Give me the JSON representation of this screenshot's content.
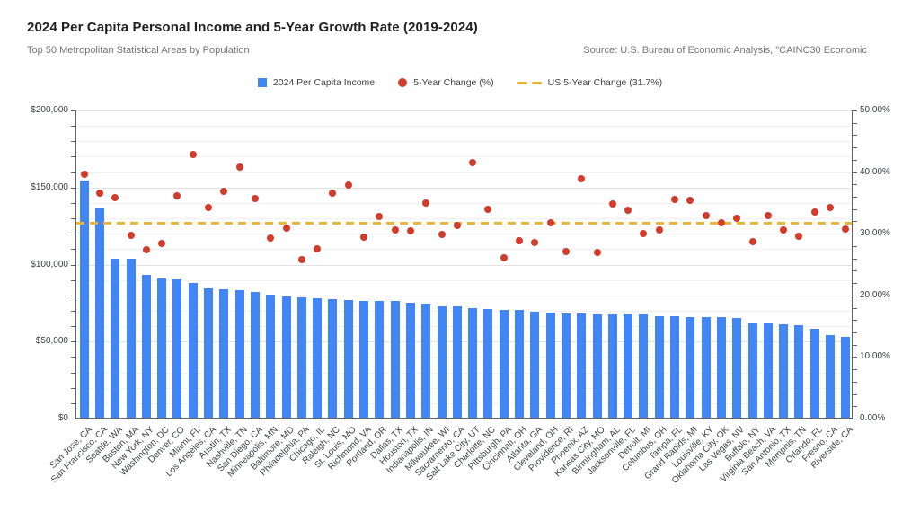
{
  "chart_data": {
    "type": "bar",
    "subtype": "combo-bar-scatter",
    "title": "2024 Per Capita Personal Income and 5-Year Growth Rate (2019-2024)",
    "subtitle": "Top 50 Metropolitan Statistical Areas by Population",
    "source_note": "Source: U.S. Bureau of Economic Analysis, \"CAINC30 Economic",
    "grid": true,
    "legend_position": "top-center",
    "categories": [
      "San Jose, CA",
      "San Francisco, CA",
      "Seattle, WA",
      "Boston, MA",
      "New York, NY",
      "Washington, DC",
      "Denver, CO",
      "Miami, FL",
      "Los Angeles, CA",
      "Austin, TX",
      "Nashville, TN",
      "San Diego, CA",
      "Minneapolis, MN",
      "Baltimore, MD",
      "Philadelphia, PA",
      "Chicago, IL",
      "Raleigh, NC",
      "St. Louis, MO",
      "Richmond, VA",
      "Portland, OR",
      "Dallas, TX",
      "Houston, TX",
      "Indianapolis, IN",
      "Milwaukee, WI",
      "Sacramento, CA",
      "Salt Lake City, UT",
      "Charlotte, NC",
      "Pittsburgh, PA",
      "Cincinnati, OH",
      "Atlanta, GA",
      "Cleveland, OH",
      "Providence, RI",
      "Phoenix, AZ",
      "Kansas City, MO",
      "Birmingham, AL",
      "Jacksonville, FL",
      "Detroit, MI",
      "Columbus, OH",
      "Tampa, FL",
      "Grand Rapids, MI",
      "Louisville, KY",
      "Oklahoma City, OK",
      "Las Vegas, NV",
      "Buffalo, NY",
      "Virginia Beach, VA",
      "San Antonio, TX",
      "Memphis, TN",
      "Orlando, FL",
      "Fresno, CA",
      "Riverside, CA"
    ],
    "series": [
      {
        "name": "2024 Per Capita Income",
        "type": "bar",
        "axis": "left",
        "color": "#4285F4",
        "values": [
          154000,
          136000,
          103500,
          103000,
          92600,
          90200,
          90000,
          87200,
          84200,
          83500,
          82900,
          81900,
          79900,
          78900,
          78400,
          77600,
          77000,
          76400,
          76100,
          76000,
          75900,
          74400,
          74100,
          72500,
          72300,
          71100,
          70700,
          70100,
          69700,
          68800,
          68200,
          67800,
          67600,
          67300,
          67200,
          67000,
          66800,
          65900,
          65800,
          65600,
          65300,
          65200,
          64700,
          61300,
          61000,
          60800,
          60300,
          57800,
          53900,
          52500
        ]
      },
      {
        "name": "5-Year Change (%)",
        "type": "scatter",
        "axis": "right",
        "color": "#D23C2B",
        "values": [
          39.6,
          36.6,
          35.9,
          29.8,
          27.4,
          28.4,
          36.2,
          42.8,
          34.2,
          36.9,
          40.8,
          35.7,
          29.3,
          30.9,
          25.8,
          27.6,
          36.6,
          37.9,
          29.4,
          32.8,
          30.6,
          30.4,
          35.0,
          29.9,
          31.3,
          41.5,
          33.9,
          26.1,
          28.9,
          28.5,
          31.8,
          27.1,
          38.9,
          27.0,
          34.9,
          33.8,
          30.0,
          30.6,
          35.6,
          35.4,
          32.9,
          31.8,
          32.5,
          28.7,
          32.9,
          30.6,
          29.6,
          33.6,
          34.2,
          30.8
        ]
      }
    ],
    "reference_line": {
      "name": "US 5-Year Change (31.7%)",
      "value": 31.7,
      "axis": "right",
      "style": "dashed",
      "color": "#E9B53C"
    },
    "axes": {
      "left": {
        "min": 0,
        "max": 200000,
        "minor_step": 10000,
        "tick_labels": [
          "$0",
          "$50,000",
          "$100,000",
          "$150,000",
          "$200,000"
        ]
      },
      "right": {
        "min": 0,
        "max": 50,
        "minor_step": 2,
        "tick_labels": [
          "0.00%",
          "10.00%",
          "20.00%",
          "30.00%",
          "40.00%",
          "50.00%"
        ]
      }
    },
    "legend": [
      {
        "label": "2024 Per Capita Income",
        "marker": "square",
        "color": "#4285F4"
      },
      {
        "label": "5-Year Change (%)",
        "marker": "circle",
        "color": "#D23C2B"
      },
      {
        "label": "US 5-Year Change (31.7%)",
        "marker": "dashed-line",
        "color": "#E9B53C"
      }
    ]
  }
}
